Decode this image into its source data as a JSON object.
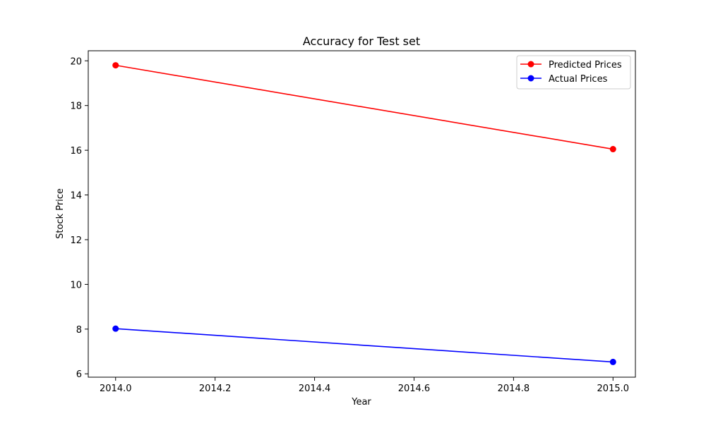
{
  "chart_data": {
    "type": "line",
    "title": "Accuracy for Test set",
    "xlabel": "Year",
    "ylabel": "Stock Price",
    "xlim": [
      2013.945,
      2015.045
    ],
    "ylim": [
      5.85,
      20.45
    ],
    "xticks": [
      2014.0,
      2014.2,
      2014.4,
      2014.6,
      2014.8,
      2015.0
    ],
    "xtick_labels": [
      "2014.0",
      "2014.2",
      "2014.4",
      "2014.6",
      "2014.8",
      "2015.0"
    ],
    "yticks": [
      6,
      8,
      10,
      12,
      14,
      16,
      18,
      20
    ],
    "ytick_labels": [
      "6",
      "8",
      "10",
      "12",
      "14",
      "16",
      "18",
      "20"
    ],
    "grid": false,
    "legend_position": "top-right",
    "series": [
      {
        "name": "Predicted Prices",
        "color": "#ff0000",
        "marker": "circle",
        "x": [
          2014.0,
          2015.0
        ],
        "y": [
          19.8,
          16.05
        ]
      },
      {
        "name": "Actual Prices",
        "color": "#0000ff",
        "marker": "circle",
        "x": [
          2014.0,
          2015.0
        ],
        "y": [
          8.02,
          6.53
        ]
      }
    ]
  }
}
